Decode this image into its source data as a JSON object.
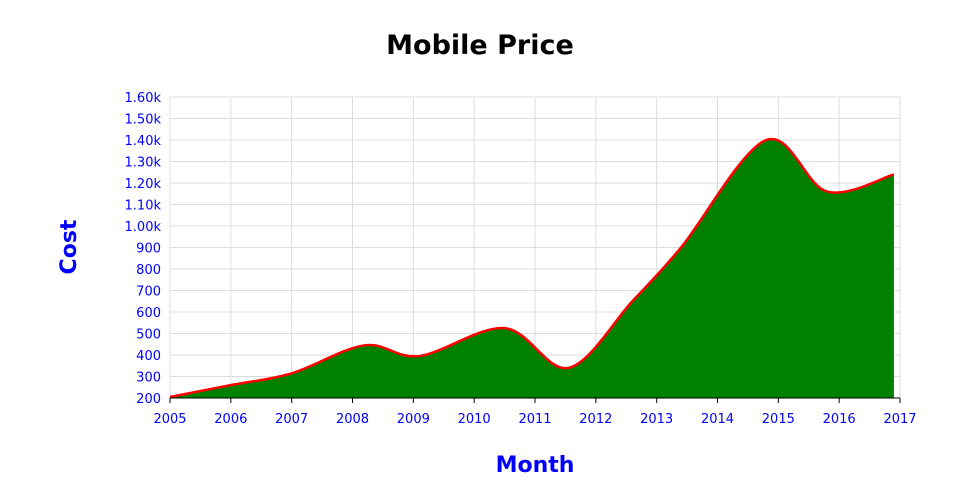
{
  "chart_data": {
    "type": "area",
    "title": "Mobile Price",
    "xlabel": "Month",
    "ylabel": "Cost",
    "x_ticks": [
      "2005",
      "2006",
      "2007",
      "2008",
      "2009",
      "2010",
      "2011",
      "2012",
      "2013",
      "2014",
      "2015",
      "2016",
      "2017"
    ],
    "y_ticks": [
      "200",
      "300",
      "400",
      "500",
      "600",
      "700",
      "800",
      "900",
      "1.00k",
      "1.10k",
      "1.20k",
      "1.30k",
      "1.40k",
      "1.50k",
      "1.60k"
    ],
    "xlim": [
      2005,
      2017
    ],
    "ylim": [
      200,
      1600
    ],
    "grid": true,
    "legend": "none",
    "series": [
      {
        "x": [
          2005.0,
          2006.0,
          2007.0,
          2008.2,
          2009.1,
          2010.5,
          2011.55,
          2012.6,
          2013.4,
          2014.8,
          2015.8,
          2016.9
        ],
        "values": [
          205,
          260,
          315,
          445,
          395,
          525,
          340,
          650,
          900,
          1400,
          1160,
          1240
        ]
      }
    ],
    "colors": {
      "fill": "#008000",
      "line": "#ff0000",
      "axis_text": "#0000ff",
      "grid": "#dddddd"
    }
  }
}
